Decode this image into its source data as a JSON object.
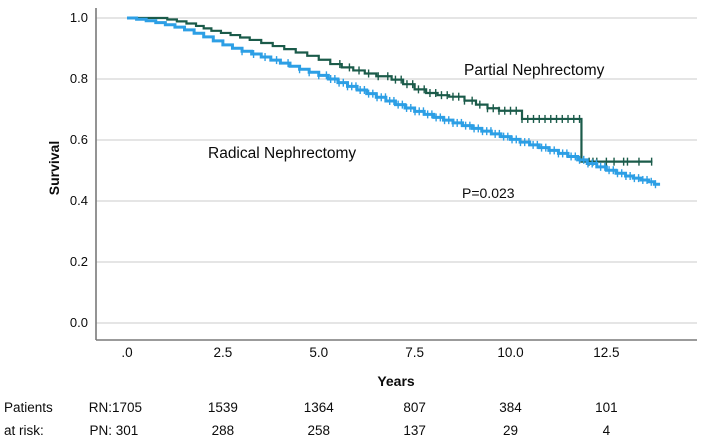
{
  "chart_data": {
    "type": "line",
    "subtype": "kaplan-meier-step",
    "title": "",
    "xlabel": "Years",
    "ylabel": "Survival",
    "xlim": [
      -0.81,
      14.86
    ],
    "ylim": [
      -0.06,
      1.03
    ],
    "grid": "horizontal",
    "gridline_color": "#cbcbcb",
    "axis_color": "#7a7a7a",
    "xticks": [
      0,
      2.5,
      5,
      7.5,
      10,
      12.5
    ],
    "xtick_labels": [
      ".0",
      "2.5",
      "5.0",
      "7.5",
      "10.0",
      "12.5"
    ],
    "yticks": [
      0.0,
      0.2,
      0.4,
      0.6,
      0.8,
      1.0
    ],
    "ytick_labels": [
      "0.0",
      "0.2",
      "0.4",
      "0.6",
      "0.8",
      "1.0"
    ],
    "annotations": {
      "p_value": "P=0.023"
    },
    "series": [
      {
        "name": "Partial Nephrectomy",
        "color": "#1b5b4a",
        "points": [
          [
            0,
            1.0
          ],
          [
            1.05,
            0.995
          ],
          [
            1.3,
            0.989
          ],
          [
            1.55,
            0.982
          ],
          [
            1.8,
            0.974
          ],
          [
            2.0,
            0.966
          ],
          [
            2.2,
            0.958
          ],
          [
            2.45,
            0.951
          ],
          [
            2.7,
            0.944
          ],
          [
            2.95,
            0.936
          ],
          [
            3.2,
            0.928
          ],
          [
            3.5,
            0.918
          ],
          [
            3.8,
            0.908
          ],
          [
            4.1,
            0.898
          ],
          [
            4.4,
            0.887
          ],
          [
            4.7,
            0.876
          ],
          [
            5.0,
            0.863
          ],
          [
            5.3,
            0.849
          ],
          [
            5.6,
            0.838
          ],
          [
            5.9,
            0.828
          ],
          [
            6.2,
            0.818
          ],
          [
            6.5,
            0.809
          ],
          [
            6.9,
            0.798
          ],
          [
            7.2,
            0.783
          ],
          [
            7.5,
            0.766
          ],
          [
            7.8,
            0.754
          ],
          [
            8.1,
            0.747
          ],
          [
            8.4,
            0.742
          ],
          [
            8.8,
            0.729
          ],
          [
            9.1,
            0.716
          ],
          [
            9.4,
            0.704
          ],
          [
            9.7,
            0.696
          ],
          [
            10.3,
            0.669
          ],
          [
            11.85,
            0.529
          ],
          [
            13.7,
            0.529
          ]
        ],
        "censor_years": [
          5.55,
          5.8,
          6.05,
          6.3,
          6.55,
          6.8,
          7.0,
          7.15,
          7.3,
          7.45,
          7.6,
          7.75,
          7.9,
          8.05,
          8.2,
          8.35,
          8.5,
          8.65,
          8.8,
          9.0,
          9.2,
          9.4,
          9.55,
          9.7,
          9.85,
          10.0,
          10.15,
          10.3,
          10.45,
          10.6,
          10.75,
          10.9,
          11.05,
          11.2,
          11.35,
          11.5,
          11.65,
          11.8,
          12.05,
          12.15,
          12.25,
          12.5,
          12.7,
          12.95,
          13.05,
          13.35,
          13.68
        ]
      },
      {
        "name": "Radical Nephrectomy",
        "color": "#2d9fe5",
        "points": [
          [
            0,
            1.0
          ],
          [
            0.25,
            0.996
          ],
          [
            0.5,
            0.991
          ],
          [
            0.75,
            0.985
          ],
          [
            1.0,
            0.978
          ],
          [
            1.25,
            0.97
          ],
          [
            1.5,
            0.961
          ],
          [
            1.75,
            0.95
          ],
          [
            2.0,
            0.938
          ],
          [
            2.25,
            0.925
          ],
          [
            2.5,
            0.912
          ],
          [
            2.75,
            0.901
          ],
          [
            3.0,
            0.891
          ],
          [
            3.25,
            0.882
          ],
          [
            3.5,
            0.872
          ],
          [
            3.75,
            0.862
          ],
          [
            4.0,
            0.852
          ],
          [
            4.25,
            0.842
          ],
          [
            4.5,
            0.832
          ],
          [
            4.75,
            0.822
          ],
          [
            5.0,
            0.812
          ],
          [
            5.25,
            0.8
          ],
          [
            5.5,
            0.788
          ],
          [
            5.75,
            0.776
          ],
          [
            6.0,
            0.764
          ],
          [
            6.25,
            0.752
          ],
          [
            6.5,
            0.74
          ],
          [
            6.75,
            0.728
          ],
          [
            7.0,
            0.716
          ],
          [
            7.25,
            0.705
          ],
          [
            7.5,
            0.694
          ],
          [
            7.75,
            0.684
          ],
          [
            8.0,
            0.674
          ],
          [
            8.25,
            0.665
          ],
          [
            8.5,
            0.656
          ],
          [
            8.75,
            0.647
          ],
          [
            9.0,
            0.638
          ],
          [
            9.25,
            0.629
          ],
          [
            9.5,
            0.62
          ],
          [
            9.75,
            0.611
          ],
          [
            10.0,
            0.602
          ],
          [
            10.25,
            0.593
          ],
          [
            10.5,
            0.584
          ],
          [
            10.75,
            0.575
          ],
          [
            11.0,
            0.566
          ],
          [
            11.25,
            0.556
          ],
          [
            11.5,
            0.546
          ],
          [
            11.75,
            0.535
          ],
          [
            12.0,
            0.523
          ],
          [
            12.25,
            0.512
          ],
          [
            12.5,
            0.501
          ],
          [
            12.75,
            0.491
          ],
          [
            13.0,
            0.482
          ],
          [
            13.2,
            0.475
          ],
          [
            13.4,
            0.469
          ],
          [
            13.6,
            0.463
          ],
          [
            13.75,
            0.455
          ],
          [
            13.9,
            0.455
          ]
        ],
        "censor_years": [
          3.0,
          3.3,
          3.6,
          3.9,
          4.2,
          4.5,
          4.75,
          5.0,
          5.2,
          5.31,
          5.42,
          5.53,
          5.64,
          5.75,
          5.86,
          5.97,
          6.08,
          6.19,
          6.3,
          6.41,
          6.52,
          6.63,
          6.74,
          6.85,
          6.96,
          7.07,
          7.18,
          7.29,
          7.4,
          7.51,
          7.62,
          7.73,
          7.84,
          7.95,
          8.06,
          8.17,
          8.28,
          8.39,
          8.5,
          8.61,
          8.72,
          8.83,
          8.94,
          9.05,
          9.16,
          9.27,
          9.38,
          9.49,
          9.6,
          9.71,
          9.82,
          9.93,
          10.04,
          10.15,
          10.26,
          10.37,
          10.48,
          10.59,
          10.7,
          10.81,
          10.92,
          11.03,
          11.14,
          11.25,
          11.36,
          11.47,
          11.58,
          11.69,
          11.8,
          11.91,
          12.02,
          12.13,
          12.24,
          12.35,
          12.46,
          12.57,
          12.68,
          12.79,
          12.9,
          13.01,
          13.12,
          13.23,
          13.34,
          13.45,
          13.56,
          13.67,
          13.78
        ]
      }
    ]
  },
  "risk_table": {
    "header_line1": "Patients",
    "header_line2": "at risk:",
    "columns_at_years": [
      0,
      2.5,
      5,
      7.5,
      10,
      12.5
    ],
    "rows": [
      {
        "label": "RN:",
        "counts": [
          "1705",
          "1539",
          "1364",
          "807",
          "384",
          "101"
        ]
      },
      {
        "label": "PN:",
        "counts": [
          "301",
          "288",
          "258",
          "137",
          "29",
          "4"
        ]
      }
    ]
  }
}
